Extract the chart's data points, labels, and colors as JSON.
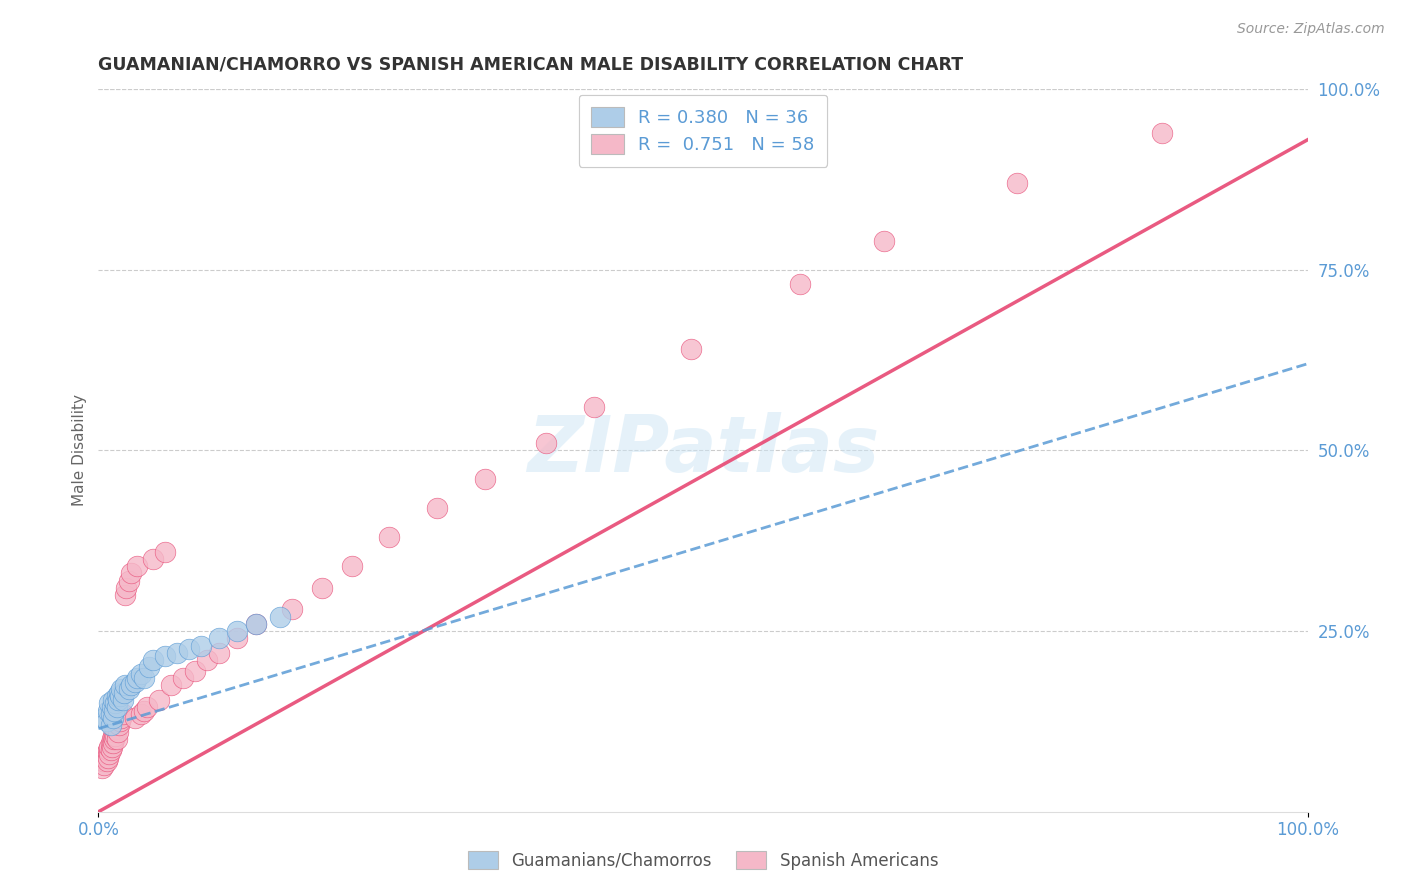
{
  "title": "GUAMANIAN/CHAMORRO VS SPANISH AMERICAN MALE DISABILITY CORRELATION CHART",
  "source": "Source: ZipAtlas.com",
  "ylabel": "Male Disability",
  "legend_label1": "Guamanians/Chamorros",
  "legend_label2": "Spanish Americans",
  "R1": 0.38,
  "N1": 36,
  "R2": 0.751,
  "N2": 58,
  "color1": "#aecde8",
  "color2": "#f5b8c8",
  "line_color1": "#5b9bd5",
  "line_color2": "#e8517a",
  "watermark": "ZIPatlas",
  "guamanian_x": [
    0.005,
    0.007,
    0.008,
    0.009,
    0.01,
    0.01,
    0.011,
    0.012,
    0.012,
    0.013,
    0.014,
    0.015,
    0.015,
    0.016,
    0.017,
    0.018,
    0.019,
    0.02,
    0.021,
    0.022,
    0.025,
    0.027,
    0.03,
    0.032,
    0.035,
    0.038,
    0.042,
    0.045,
    0.055,
    0.065,
    0.075,
    0.085,
    0.1,
    0.115,
    0.13,
    0.15
  ],
  "guamanian_y": [
    0.13,
    0.125,
    0.14,
    0.15,
    0.12,
    0.135,
    0.145,
    0.13,
    0.155,
    0.14,
    0.15,
    0.145,
    0.16,
    0.155,
    0.165,
    0.16,
    0.17,
    0.155,
    0.165,
    0.175,
    0.17,
    0.175,
    0.18,
    0.185,
    0.19,
    0.185,
    0.2,
    0.21,
    0.215,
    0.22,
    0.225,
    0.23,
    0.24,
    0.25,
    0.26,
    0.27
  ],
  "spanish_x": [
    0.003,
    0.004,
    0.005,
    0.006,
    0.006,
    0.007,
    0.008,
    0.008,
    0.009,
    0.009,
    0.01,
    0.01,
    0.011,
    0.011,
    0.012,
    0.012,
    0.013,
    0.013,
    0.014,
    0.014,
    0.015,
    0.016,
    0.017,
    0.018,
    0.019,
    0.02,
    0.022,
    0.023,
    0.025,
    0.027,
    0.03,
    0.032,
    0.035,
    0.038,
    0.04,
    0.045,
    0.05,
    0.055,
    0.06,
    0.07,
    0.08,
    0.09,
    0.1,
    0.115,
    0.13,
    0.16,
    0.185,
    0.21,
    0.24,
    0.28,
    0.32,
    0.37,
    0.41,
    0.49,
    0.58,
    0.65,
    0.76,
    0.88
  ],
  "spanish_y": [
    0.06,
    0.07,
    0.065,
    0.075,
    0.08,
    0.07,
    0.075,
    0.085,
    0.08,
    0.09,
    0.085,
    0.095,
    0.09,
    0.1,
    0.095,
    0.105,
    0.1,
    0.11,
    0.105,
    0.115,
    0.1,
    0.11,
    0.12,
    0.125,
    0.13,
    0.135,
    0.3,
    0.31,
    0.32,
    0.33,
    0.13,
    0.34,
    0.135,
    0.14,
    0.145,
    0.35,
    0.155,
    0.36,
    0.175,
    0.185,
    0.195,
    0.21,
    0.22,
    0.24,
    0.26,
    0.28,
    0.31,
    0.34,
    0.38,
    0.42,
    0.46,
    0.51,
    0.56,
    0.64,
    0.73,
    0.79,
    0.87,
    0.94
  ],
  "blue_line_x": [
    0.0,
    1.0
  ],
  "blue_line_y": [
    0.115,
    0.62
  ],
  "pink_line_x": [
    0.0,
    1.0
  ],
  "pink_line_y": [
    0.0,
    0.93
  ],
  "xlim": [
    0.0,
    1.0
  ],
  "ylim": [
    0.0,
    1.0
  ],
  "ytick_vals": [
    0.25,
    0.5,
    0.75,
    1.0
  ],
  "ytick_labels": [
    "25.0%",
    "50.0%",
    "75.0%",
    "100.0%"
  ],
  "xtick_vals": [
    0.0,
    1.0
  ],
  "xtick_labels": [
    "0.0%",
    "100.0%"
  ]
}
